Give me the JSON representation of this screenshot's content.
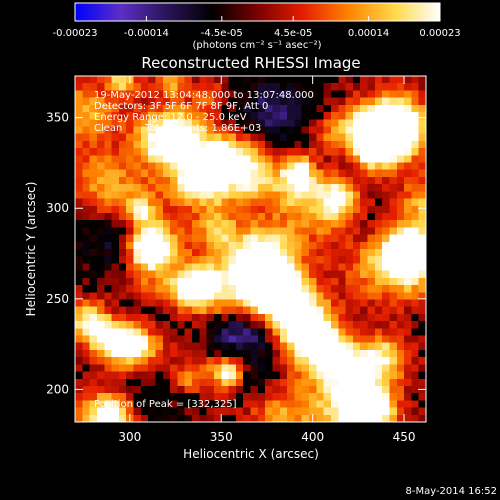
{
  "chart_data": {
    "type": "heatmap",
    "title": "Reconstructed RHESSI Image",
    "xlabel": "Heliocentric X (arcsec)",
    "ylabel": "Heliocentric Y (arcsec)",
    "xlim": [
      270,
      462
    ],
    "ylim": [
      182,
      373
    ],
    "x_ticks": [
      300,
      350,
      400,
      450
    ],
    "y_ticks": [
      200,
      250,
      300,
      350
    ],
    "colorbar": {
      "range": [
        -0.00023,
        0.00023
      ],
      "tick_values": [
        -0.00023,
        -0.00014,
        -4.5e-05,
        4.5e-05,
        0.00014,
        0.00023
      ],
      "tick_labels": [
        "-0.00023",
        "-0.00014",
        "-4.5e-05",
        "4.5e-05",
        "0.00014",
        "0.00023"
      ],
      "unit_label": "(photons cm⁻² s⁻¹ asec⁻²)",
      "colors": [
        "#0000ff",
        "#5a2fc4",
        "#2a145a",
        "#000000",
        "#7a0000",
        "#e51e00",
        "#ff8400",
        "#ffd84a",
        "#ffffff"
      ]
    },
    "annotations": {
      "time": "19-May-2012 13:04:48.000 to 13:07:48.000",
      "detectors": "Detectors: 3F 5F 6F 7F 8F 9F, Att 0",
      "energy": "Energy Range: 12.0 - 25.0 keV",
      "clean": "Clean",
      "counts": "Total counts: 1.86E+03",
      "peak": "Position of Peak = [332,325]"
    },
    "peak_position": [
      332,
      325
    ],
    "grid": false,
    "grid_cells": [
      48,
      48
    ]
  },
  "footer": {
    "date": "8-May-2014 16:52"
  }
}
